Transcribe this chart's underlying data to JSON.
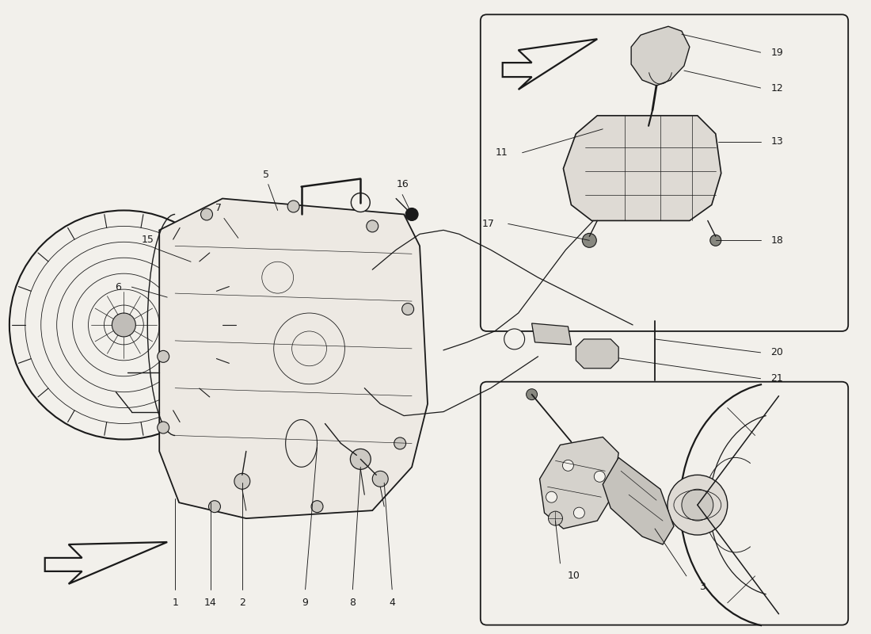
{
  "bg_color": "#f2f0eb",
  "line_color": "#1a1a1a",
  "fig_width": 11.0,
  "fig_height": 8.0,
  "dpi": 100
}
